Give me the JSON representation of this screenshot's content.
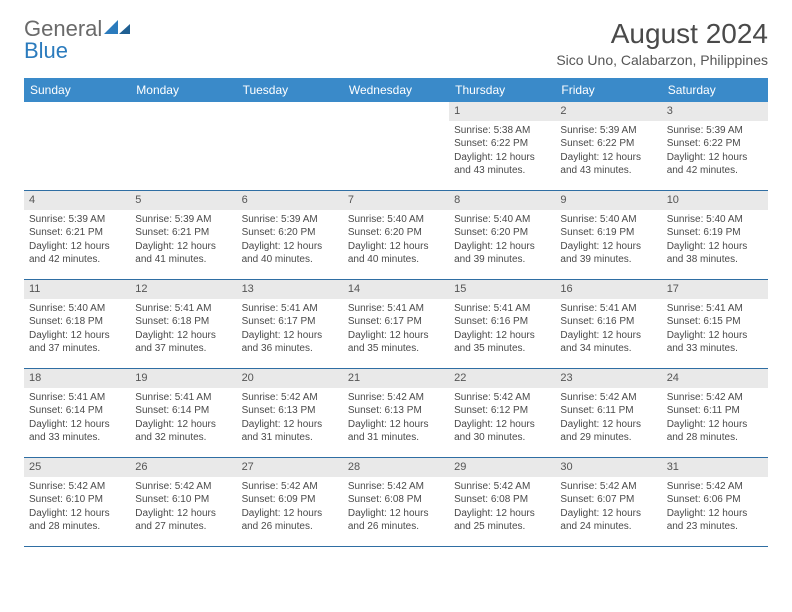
{
  "brand": {
    "text1": "General",
    "text2": "Blue"
  },
  "title": "August 2024",
  "subtitle": "Sico Uno, Calabarzon, Philippines",
  "colors": {
    "header_bg": "#3a8ac9",
    "header_text": "#ffffff",
    "daynum_bg": "#e9e9e9",
    "border": "#2f6ea3",
    "body_text": "#4a4a4a",
    "brand_grey": "#6a6a6a",
    "brand_blue": "#2b7bbd"
  },
  "day_names": [
    "Sunday",
    "Monday",
    "Tuesday",
    "Wednesday",
    "Thursday",
    "Friday",
    "Saturday"
  ],
  "weeks": [
    [
      {
        "n": "",
        "sr": "",
        "ss": "",
        "d1": "",
        "d2": ""
      },
      {
        "n": "",
        "sr": "",
        "ss": "",
        "d1": "",
        "d2": ""
      },
      {
        "n": "",
        "sr": "",
        "ss": "",
        "d1": "",
        "d2": ""
      },
      {
        "n": "",
        "sr": "",
        "ss": "",
        "d1": "",
        "d2": ""
      },
      {
        "n": "1",
        "sr": "Sunrise: 5:38 AM",
        "ss": "Sunset: 6:22 PM",
        "d1": "Daylight: 12 hours",
        "d2": "and 43 minutes."
      },
      {
        "n": "2",
        "sr": "Sunrise: 5:39 AM",
        "ss": "Sunset: 6:22 PM",
        "d1": "Daylight: 12 hours",
        "d2": "and 43 minutes."
      },
      {
        "n": "3",
        "sr": "Sunrise: 5:39 AM",
        "ss": "Sunset: 6:22 PM",
        "d1": "Daylight: 12 hours",
        "d2": "and 42 minutes."
      }
    ],
    [
      {
        "n": "4",
        "sr": "Sunrise: 5:39 AM",
        "ss": "Sunset: 6:21 PM",
        "d1": "Daylight: 12 hours",
        "d2": "and 42 minutes."
      },
      {
        "n": "5",
        "sr": "Sunrise: 5:39 AM",
        "ss": "Sunset: 6:21 PM",
        "d1": "Daylight: 12 hours",
        "d2": "and 41 minutes."
      },
      {
        "n": "6",
        "sr": "Sunrise: 5:39 AM",
        "ss": "Sunset: 6:20 PM",
        "d1": "Daylight: 12 hours",
        "d2": "and 40 minutes."
      },
      {
        "n": "7",
        "sr": "Sunrise: 5:40 AM",
        "ss": "Sunset: 6:20 PM",
        "d1": "Daylight: 12 hours",
        "d2": "and 40 minutes."
      },
      {
        "n": "8",
        "sr": "Sunrise: 5:40 AM",
        "ss": "Sunset: 6:20 PM",
        "d1": "Daylight: 12 hours",
        "d2": "and 39 minutes."
      },
      {
        "n": "9",
        "sr": "Sunrise: 5:40 AM",
        "ss": "Sunset: 6:19 PM",
        "d1": "Daylight: 12 hours",
        "d2": "and 39 minutes."
      },
      {
        "n": "10",
        "sr": "Sunrise: 5:40 AM",
        "ss": "Sunset: 6:19 PM",
        "d1": "Daylight: 12 hours",
        "d2": "and 38 minutes."
      }
    ],
    [
      {
        "n": "11",
        "sr": "Sunrise: 5:40 AM",
        "ss": "Sunset: 6:18 PM",
        "d1": "Daylight: 12 hours",
        "d2": "and 37 minutes."
      },
      {
        "n": "12",
        "sr": "Sunrise: 5:41 AM",
        "ss": "Sunset: 6:18 PM",
        "d1": "Daylight: 12 hours",
        "d2": "and 37 minutes."
      },
      {
        "n": "13",
        "sr": "Sunrise: 5:41 AM",
        "ss": "Sunset: 6:17 PM",
        "d1": "Daylight: 12 hours",
        "d2": "and 36 minutes."
      },
      {
        "n": "14",
        "sr": "Sunrise: 5:41 AM",
        "ss": "Sunset: 6:17 PM",
        "d1": "Daylight: 12 hours",
        "d2": "and 35 minutes."
      },
      {
        "n": "15",
        "sr": "Sunrise: 5:41 AM",
        "ss": "Sunset: 6:16 PM",
        "d1": "Daylight: 12 hours",
        "d2": "and 35 minutes."
      },
      {
        "n": "16",
        "sr": "Sunrise: 5:41 AM",
        "ss": "Sunset: 6:16 PM",
        "d1": "Daylight: 12 hours",
        "d2": "and 34 minutes."
      },
      {
        "n": "17",
        "sr": "Sunrise: 5:41 AM",
        "ss": "Sunset: 6:15 PM",
        "d1": "Daylight: 12 hours",
        "d2": "and 33 minutes."
      }
    ],
    [
      {
        "n": "18",
        "sr": "Sunrise: 5:41 AM",
        "ss": "Sunset: 6:14 PM",
        "d1": "Daylight: 12 hours",
        "d2": "and 33 minutes."
      },
      {
        "n": "19",
        "sr": "Sunrise: 5:41 AM",
        "ss": "Sunset: 6:14 PM",
        "d1": "Daylight: 12 hours",
        "d2": "and 32 minutes."
      },
      {
        "n": "20",
        "sr": "Sunrise: 5:42 AM",
        "ss": "Sunset: 6:13 PM",
        "d1": "Daylight: 12 hours",
        "d2": "and 31 minutes."
      },
      {
        "n": "21",
        "sr": "Sunrise: 5:42 AM",
        "ss": "Sunset: 6:13 PM",
        "d1": "Daylight: 12 hours",
        "d2": "and 31 minutes."
      },
      {
        "n": "22",
        "sr": "Sunrise: 5:42 AM",
        "ss": "Sunset: 6:12 PM",
        "d1": "Daylight: 12 hours",
        "d2": "and 30 minutes."
      },
      {
        "n": "23",
        "sr": "Sunrise: 5:42 AM",
        "ss": "Sunset: 6:11 PM",
        "d1": "Daylight: 12 hours",
        "d2": "and 29 minutes."
      },
      {
        "n": "24",
        "sr": "Sunrise: 5:42 AM",
        "ss": "Sunset: 6:11 PM",
        "d1": "Daylight: 12 hours",
        "d2": "and 28 minutes."
      }
    ],
    [
      {
        "n": "25",
        "sr": "Sunrise: 5:42 AM",
        "ss": "Sunset: 6:10 PM",
        "d1": "Daylight: 12 hours",
        "d2": "and 28 minutes."
      },
      {
        "n": "26",
        "sr": "Sunrise: 5:42 AM",
        "ss": "Sunset: 6:10 PM",
        "d1": "Daylight: 12 hours",
        "d2": "and 27 minutes."
      },
      {
        "n": "27",
        "sr": "Sunrise: 5:42 AM",
        "ss": "Sunset: 6:09 PM",
        "d1": "Daylight: 12 hours",
        "d2": "and 26 minutes."
      },
      {
        "n": "28",
        "sr": "Sunrise: 5:42 AM",
        "ss": "Sunset: 6:08 PM",
        "d1": "Daylight: 12 hours",
        "d2": "and 26 minutes."
      },
      {
        "n": "29",
        "sr": "Sunrise: 5:42 AM",
        "ss": "Sunset: 6:08 PM",
        "d1": "Daylight: 12 hours",
        "d2": "and 25 minutes."
      },
      {
        "n": "30",
        "sr": "Sunrise: 5:42 AM",
        "ss": "Sunset: 6:07 PM",
        "d1": "Daylight: 12 hours",
        "d2": "and 24 minutes."
      },
      {
        "n": "31",
        "sr": "Sunrise: 5:42 AM",
        "ss": "Sunset: 6:06 PM",
        "d1": "Daylight: 12 hours",
        "d2": "and 23 minutes."
      }
    ]
  ]
}
